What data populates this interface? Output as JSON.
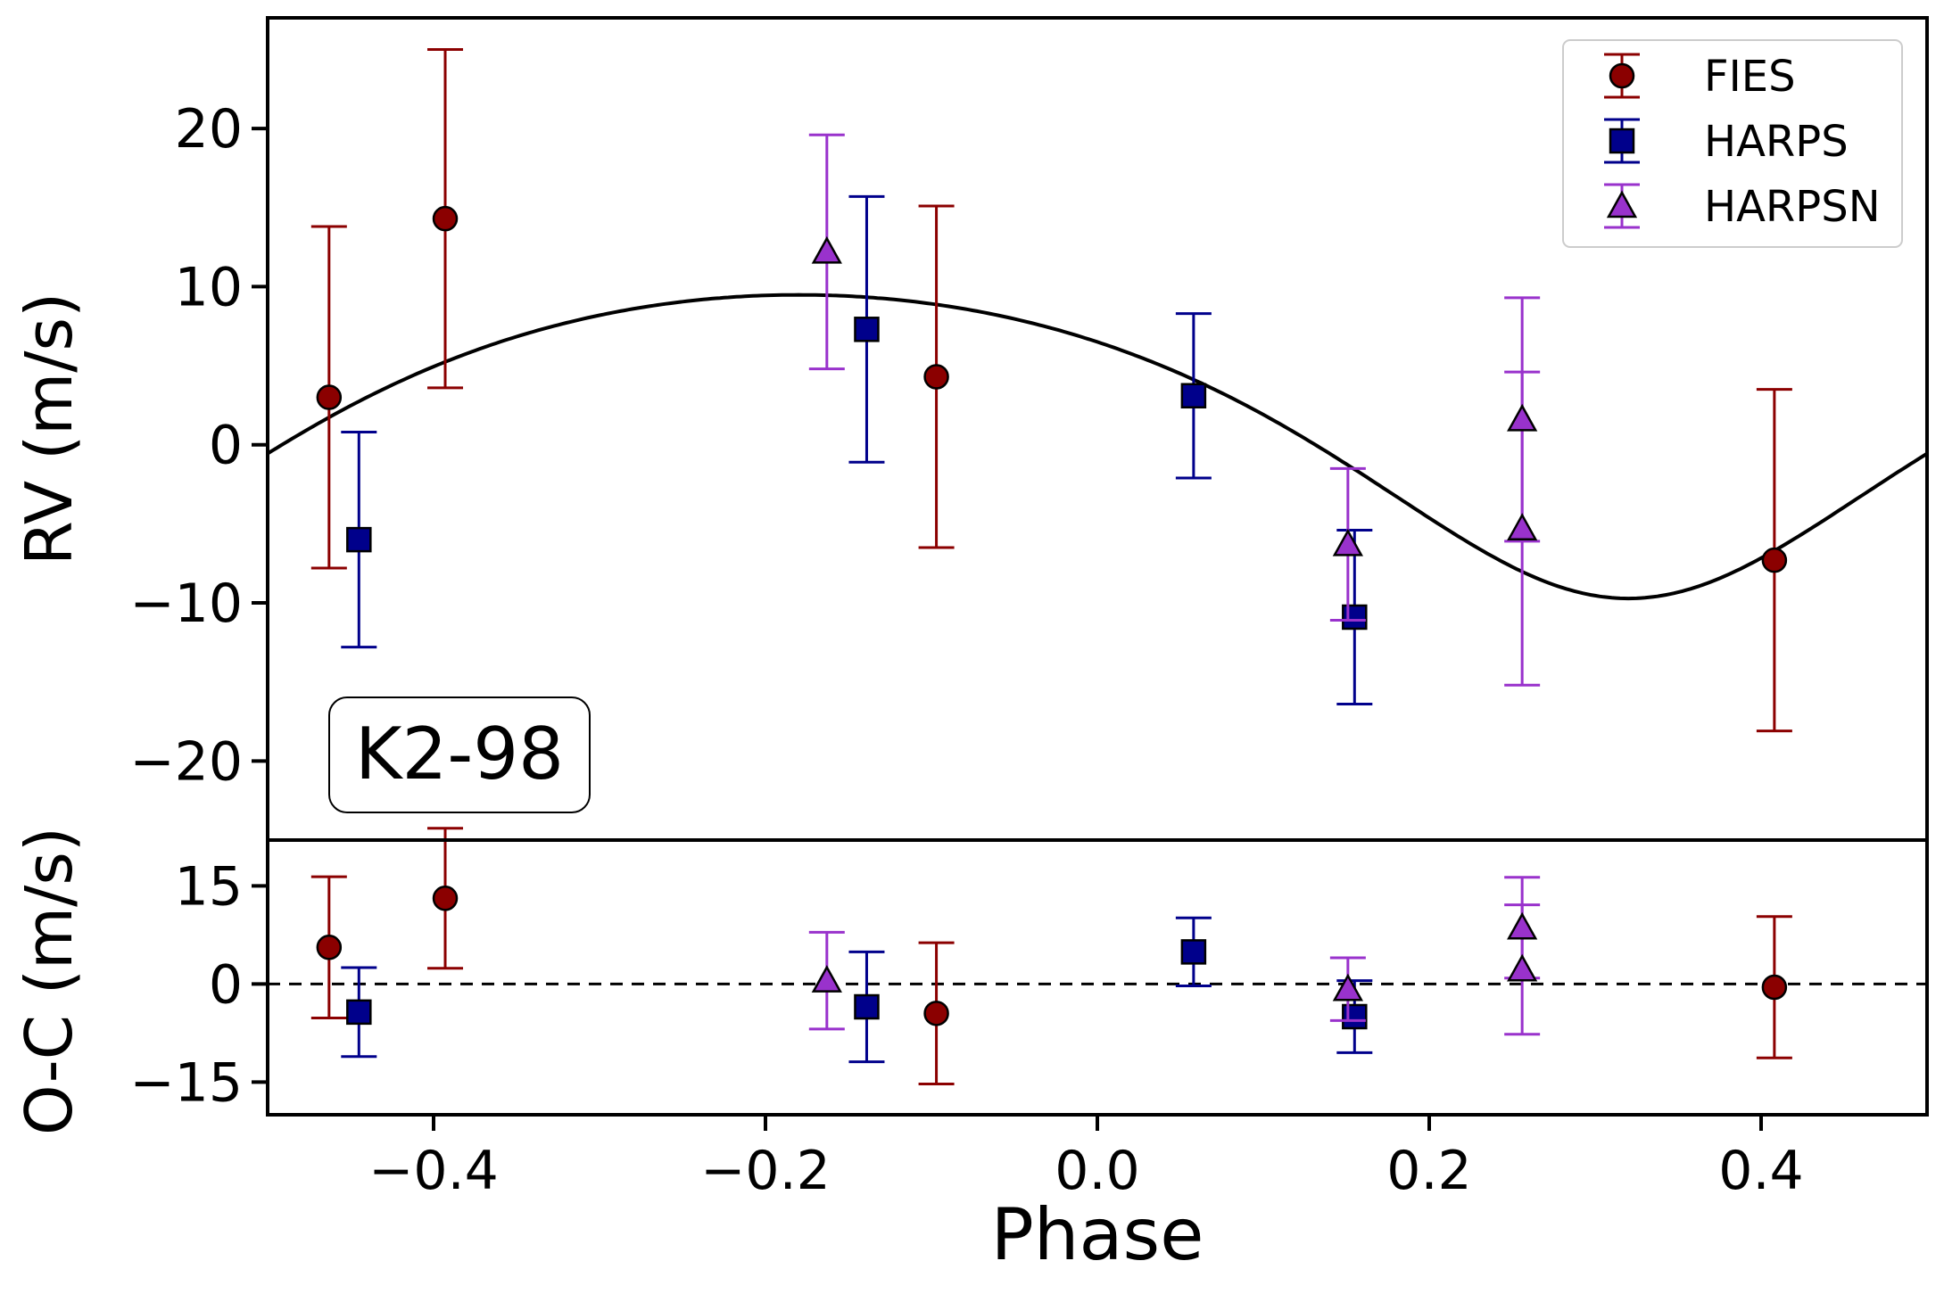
{
  "chart_data": {
    "type": "scatter",
    "target_label": "K2-98",
    "xlabel": "Phase",
    "xlim": [
      -0.5,
      0.5
    ],
    "xticks": [
      -0.4,
      -0.2,
      0.0,
      0.2,
      0.4
    ],
    "xtick_labels": [
      "−0.4",
      "−0.2",
      "0.0",
      "0.2",
      "0.4"
    ],
    "top_panel": {
      "ylabel": "RV (m/s)",
      "ylim": [
        -25,
        27
      ],
      "yticks": [
        20,
        10,
        0,
        -10,
        -20
      ],
      "ytick_labels": [
        "20",
        "10",
        "0",
        "−10",
        "−20"
      ],
      "model": {
        "type": "rv_curve",
        "amplitude": 9.6,
        "offset": 1.8,
        "eccentricity": 0.2,
        "omega_deg": 180,
        "peak_phase": -0.18,
        "color": "#000000"
      }
    },
    "bottom_panel": {
      "ylabel": "O-C (m/s)",
      "ylim": [
        -20,
        22
      ],
      "yticks": [
        15,
        0,
        -15
      ],
      "ytick_labels": [
        "15",
        "0",
        "−15"
      ],
      "zero_line": "dashed"
    },
    "legend": {
      "position": "top-right",
      "entries": [
        {
          "label": "FIES",
          "marker": "circle",
          "color": "#8b0000"
        },
        {
          "label": "HARPS",
          "marker": "square",
          "color": "#00008b"
        },
        {
          "label": "HARPSN",
          "marker": "triangle",
          "color": "#9932cc"
        }
      ]
    },
    "series": [
      {
        "name": "FIES",
        "marker": "circle",
        "color": "#8b0000",
        "x": [
          -0.463,
          -0.393,
          -0.097,
          0.408
        ],
        "rv": [
          3.0,
          14.3,
          4.3,
          -7.3
        ],
        "rv_err": [
          10.8,
          10.7,
          10.8,
          10.8
        ],
        "oc": [
          5.6,
          13.1,
          -4.5,
          -0.5
        ],
        "oc_err": [
          10.8,
          10.7,
          10.8,
          10.8
        ]
      },
      {
        "name": "HARPS",
        "marker": "square",
        "color": "#00008b",
        "x": [
          -0.445,
          -0.139,
          0.058,
          0.155
        ],
        "rv": [
          -6.0,
          7.3,
          3.1,
          -10.9
        ],
        "rv_err": [
          6.8,
          8.4,
          5.2,
          5.5
        ],
        "oc": [
          -4.3,
          -3.5,
          4.9,
          -5.0
        ],
        "oc_err": [
          6.8,
          8.4,
          5.2,
          5.5
        ]
      },
      {
        "name": "HARPSN",
        "marker": "triangle",
        "color": "#9932cc",
        "x": [
          -0.163,
          0.151,
          0.256,
          0.256
        ],
        "rv": [
          12.2,
          -6.3,
          1.6,
          -5.3
        ],
        "rv_err": [
          7.4,
          4.8,
          7.7,
          9.9
        ],
        "oc": [
          0.5,
          -0.8,
          8.6,
          2.2
        ],
        "oc_err": [
          7.4,
          4.8,
          7.7,
          9.9
        ]
      }
    ]
  }
}
